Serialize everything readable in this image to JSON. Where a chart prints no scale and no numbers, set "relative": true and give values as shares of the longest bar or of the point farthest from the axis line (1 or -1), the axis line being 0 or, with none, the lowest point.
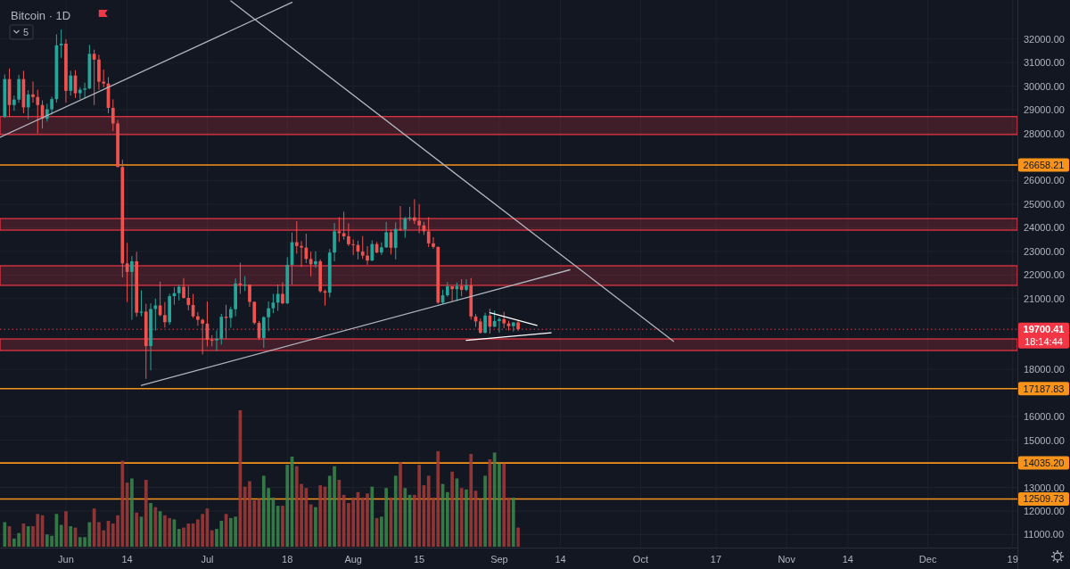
{
  "chart_data": [
    {
      "type": "candlestick",
      "title": "Bitcoin · 1D",
      "x": [
        "--05-19",
        "--05-20",
        "--05-21",
        "--05-22",
        "--05-23",
        "--05-24",
        "--05-25",
        "--05-26",
        "--05-27",
        "--05-28",
        "--05-29",
        "--05-30",
        "--05-31",
        "--06-01",
        "--06-02",
        "--06-03",
        "--06-04",
        "--06-05",
        "--06-06",
        "--06-07",
        "--06-08",
        "--06-09",
        "--06-10",
        "--06-11",
        "--06-12",
        "--06-13",
        "--06-14",
        "--06-15",
        "--06-16",
        "--06-17",
        "--06-18",
        "--06-19",
        "--06-20",
        "--06-21",
        "--06-22",
        "--06-23",
        "--06-24",
        "--06-25",
        "--06-26",
        "--06-27",
        "--06-28",
        "--06-29",
        "--06-30",
        "--07-01",
        "--07-02",
        "--07-03",
        "--07-04",
        "--07-05",
        "--07-06",
        "--07-07",
        "--07-08",
        "--07-09",
        "--07-10",
        "--07-11",
        "--07-12",
        "--07-13",
        "--07-14",
        "--07-15",
        "--07-16",
        "--07-17",
        "--07-18",
        "--07-19",
        "--07-20",
        "--07-21",
        "--07-22",
        "--07-23",
        "--07-24",
        "--07-25",
        "--07-26",
        "--07-27",
        "--07-28",
        "--07-29",
        "--07-30",
        "--07-31",
        "--08-01",
        "--08-02",
        "--08-03",
        "--08-04",
        "--08-05",
        "--08-06",
        "--08-07",
        "--08-08",
        "--08-09",
        "--08-10",
        "--08-11",
        "--08-12",
        "--08-13",
        "--08-14",
        "--08-15",
        "--08-16",
        "--08-17",
        "--08-18",
        "--08-19",
        "--08-20",
        "--08-21",
        "--08-22",
        "--08-23",
        "--08-24",
        "--08-25",
        "--08-26",
        "--08-27",
        "--08-28",
        "--08-29",
        "--08-30",
        "--08-31",
        "--09-01",
        "--09-02",
        "--09-03",
        "--09-04",
        "--09-05"
      ],
      "ohlc": [
        [
          28700,
          30500,
          28650,
          30300
        ],
        [
          30300,
          30750,
          28700,
          29200
        ],
        [
          29200,
          29600,
          28950,
          29430
        ],
        [
          29430,
          30480,
          29300,
          30300
        ],
        [
          30300,
          30650,
          28850,
          29100
        ],
        [
          29100,
          29830,
          28600,
          29650
        ],
        [
          29650,
          30200,
          29300,
          29540
        ],
        [
          29540,
          29850,
          28000,
          29200
        ],
        [
          29200,
          29400,
          28200,
          28620
        ],
        [
          28620,
          29250,
          28500,
          29020
        ],
        [
          29020,
          29550,
          28800,
          29450
        ],
        [
          29450,
          32200,
          29300,
          31730
        ],
        [
          31730,
          32400,
          31200,
          31800
        ],
        [
          31800,
          31980,
          29300,
          29800
        ],
        [
          29800,
          30650,
          29600,
          30450
        ],
        [
          30450,
          30680,
          29500,
          29700
        ],
        [
          29700,
          29950,
          29450,
          29850
        ],
        [
          29850,
          30150,
          29500,
          29900
        ],
        [
          29900,
          31750,
          29880,
          31370
        ],
        [
          31370,
          31550,
          29200,
          31125
        ],
        [
          31125,
          31330,
          29850,
          30190
        ],
        [
          30190,
          30700,
          29950,
          30110
        ],
        [
          30110,
          30380,
          28850,
          29080
        ],
        [
          29080,
          29440,
          28100,
          28420
        ],
        [
          28420,
          28560,
          26560,
          26575
        ],
        [
          26575,
          26880,
          21900,
          22490
        ],
        [
          22490,
          23360,
          20850,
          22130
        ],
        [
          22130,
          22800,
          20100,
          22580
        ],
        [
          22580,
          22980,
          20230,
          20400
        ],
        [
          20400,
          21350,
          20250,
          20450
        ],
        [
          20450,
          20780,
          17600,
          18990
        ],
        [
          18990,
          20800,
          17960,
          20560
        ],
        [
          20560,
          21000,
          19640,
          20710
        ],
        [
          20710,
          21720,
          20250,
          20300
        ],
        [
          20300,
          20850,
          19770,
          20000
        ],
        [
          20000,
          21200,
          19890,
          21100
        ],
        [
          21100,
          21480,
          20740,
          21230
        ],
        [
          21230,
          21580,
          20920,
          21500
        ],
        [
          21500,
          21870,
          21000,
          21030
        ],
        [
          21030,
          21530,
          20500,
          20730
        ],
        [
          20730,
          21200,
          20180,
          20250
        ],
        [
          20250,
          20430,
          19850,
          20100
        ],
        [
          20100,
          20150,
          18630,
          19940
        ],
        [
          19940,
          20880,
          18970,
          19250
        ],
        [
          19250,
          19450,
          18980,
          19230
        ],
        [
          19230,
          19650,
          18780,
          19300
        ],
        [
          19300,
          20350,
          19050,
          20230
        ],
        [
          20230,
          20740,
          19300,
          20180
        ],
        [
          20180,
          20660,
          19760,
          20550
        ],
        [
          20550,
          21850,
          20250,
          21640
        ],
        [
          21640,
          22520,
          21200,
          21580
        ],
        [
          21580,
          21950,
          21320,
          21590
        ],
        [
          21590,
          21600,
          20650,
          20860
        ],
        [
          20860,
          20880,
          19900,
          19970
        ],
        [
          19970,
          20050,
          19240,
          19330
        ],
        [
          19330,
          20250,
          18910,
          20210
        ],
        [
          20210,
          20880,
          19620,
          20590
        ],
        [
          20590,
          21200,
          20380,
          20830
        ],
        [
          20830,
          21600,
          20480,
          21200
        ],
        [
          21200,
          21690,
          20760,
          20800
        ],
        [
          20800,
          22750,
          20770,
          22430
        ],
        [
          22430,
          23800,
          21600,
          23390
        ],
        [
          23390,
          24280,
          22900,
          23230
        ],
        [
          23230,
          23440,
          22340,
          23160
        ],
        [
          23160,
          23750,
          22500,
          22680
        ],
        [
          22680,
          22990,
          21950,
          22450
        ],
        [
          22450,
          23000,
          22300,
          22580
        ],
        [
          22580,
          22660,
          21250,
          21310
        ],
        [
          21310,
          21380,
          20700,
          21250
        ],
        [
          21250,
          23100,
          21050,
          22950
        ],
        [
          22950,
          24200,
          22580,
          23850
        ],
        [
          23850,
          24450,
          23400,
          23770
        ],
        [
          23770,
          24680,
          23500,
          23640
        ],
        [
          23640,
          24190,
          23230,
          23300
        ],
        [
          23300,
          23510,
          22850,
          23270
        ],
        [
          23270,
          23450,
          22660,
          22990
        ],
        [
          22990,
          23650,
          22680,
          22820
        ],
        [
          22820,
          23220,
          22430,
          22610
        ],
        [
          22610,
          23470,
          22590,
          23310
        ],
        [
          23310,
          23400,
          22920,
          22950
        ],
        [
          22950,
          23380,
          22850,
          23170
        ],
        [
          23170,
          24250,
          23150,
          23810
        ],
        [
          23810,
          23930,
          22870,
          23150
        ],
        [
          23150,
          24230,
          22660,
          23950
        ],
        [
          23950,
          24920,
          23870,
          23930
        ],
        [
          23930,
          24460,
          23580,
          24400
        ],
        [
          24400,
          24890,
          24290,
          24440
        ],
        [
          24440,
          25210,
          24160,
          24300
        ],
        [
          24300,
          25000,
          23770,
          24100
        ],
        [
          24100,
          24250,
          23700,
          23850
        ],
        [
          23850,
          24450,
          23180,
          23340
        ],
        [
          23340,
          23600,
          23110,
          23190
        ],
        [
          23190,
          23200,
          20780,
          20830
        ],
        [
          20830,
          21380,
          20760,
          21140
        ],
        [
          21140,
          21700,
          21080,
          21520
        ],
        [
          21520,
          21530,
          20890,
          21400
        ],
        [
          21400,
          21680,
          20890,
          21530
        ],
        [
          21530,
          21820,
          21100,
          21370
        ],
        [
          21370,
          21820,
          21310,
          21560
        ],
        [
          21560,
          21870,
          20110,
          20240
        ],
        [
          20240,
          20340,
          19800,
          20030
        ],
        [
          20030,
          20150,
          19520,
          19550
        ],
        [
          19550,
          20400,
          19530,
          20280
        ],
        [
          20280,
          20570,
          19520,
          19810
        ],
        [
          19810,
          20490,
          19790,
          20050
        ],
        [
          20050,
          20200,
          19560,
          20130
        ],
        [
          20130,
          20440,
          19750,
          19950
        ],
        [
          19950,
          20060,
          19650,
          19830
        ],
        [
          19830,
          20000,
          19600,
          19990
        ],
        [
          19990,
          20060,
          19630,
          19700.41
        ]
      ],
      "series": [
        {
          "type": "line",
          "color": "#b2b5be",
          "x": [
            "--05-18",
            "--07-19"
          ],
          "values": [
            27830,
            33550
          ]
        },
        {
          "type": "line",
          "color": "#b2b5be",
          "x": [
            "--07-06",
            "--10-08"
          ],
          "values": [
            33610,
            19190
          ]
        },
        {
          "type": "line",
          "color": "#b2b5be",
          "x": [
            "--06-17",
            "--09-16"
          ],
          "values": [
            17320,
            22220
          ]
        },
        {
          "type": "line",
          "color": "#ffffff",
          "x": [
            "--08-30",
            "--09-09"
          ],
          "values": [
            20400,
            19860
          ]
        },
        {
          "type": "line",
          "color": "#ffffff",
          "x": [
            "--08-25",
            "--09-12"
          ],
          "values": [
            19230,
            19550
          ]
        }
      ],
      "xlim": [
        "--05-18",
        "--12-20"
      ],
      "xticks": [
        {
          "value": "--06-01",
          "label": "Jun"
        },
        {
          "value": "--06-14",
          "label": "14"
        },
        {
          "value": "--07-01",
          "label": "Jul"
        },
        {
          "value": "--07-18",
          "label": "18"
        },
        {
          "value": "--08-01",
          "label": "Aug"
        },
        {
          "value": "--08-15",
          "label": "15"
        },
        {
          "value": "--09-01",
          "label": "Sep"
        },
        {
          "value": "--09-14",
          "label": "14"
        },
        {
          "value": "--10-01",
          "label": "Oct"
        },
        {
          "value": "--10-17",
          "label": "17"
        },
        {
          "value": "--11-01",
          "label": "Nov"
        },
        {
          "value": "--11-14",
          "label": "14"
        },
        {
          "value": "--12-01",
          "label": "Dec"
        },
        {
          "value": "--12-19",
          "label": "19"
        }
      ],
      "ylim": [
        10450,
        33650
      ],
      "yticks": [
        {
          "value": 11000,
          "label": "11000.00"
        },
        {
          "value": 12000,
          "label": "12000.00"
        },
        {
          "value": 13000,
          "label": "13000.00"
        },
        {
          "value": 15000,
          "label": "15000.00"
        },
        {
          "value": 16000,
          "label": "16000.00"
        },
        {
          "value": 18000,
          "label": "18000.00"
        },
        {
          "value": 21000,
          "label": "21000.00"
        },
        {
          "value": 22000,
          "label": "22000.00"
        },
        {
          "value": 23000,
          "label": "23000.00"
        },
        {
          "value": 24000,
          "label": "24000.00"
        },
        {
          "value": 25000,
          "label": "25000.00"
        },
        {
          "value": 26000,
          "label": "26000.00"
        },
        {
          "value": 28000,
          "label": "28000.00"
        },
        {
          "value": 29000,
          "label": "29000.00"
        },
        {
          "value": 30000,
          "label": "30000.00"
        },
        {
          "value": 31000,
          "label": "31000.00"
        },
        {
          "value": 32000,
          "label": "32000.00"
        }
      ],
      "grid": true,
      "bands": [
        {
          "axis": "y",
          "from": 27950,
          "to": 28710,
          "color": "#f23645"
        },
        {
          "axis": "y",
          "from": 23900,
          "to": 24390,
          "color": "#f23645"
        },
        {
          "axis": "y",
          "from": 21560,
          "to": 22390,
          "color": "#f23645"
        },
        {
          "axis": "y",
          "from": 18800,
          "to": 19290,
          "color": "#f23645"
        }
      ],
      "ref_lines": [
        {
          "axis": "y",
          "value": 26658.21,
          "label": "26658.21",
          "color": "#f7931a"
        },
        {
          "axis": "y",
          "value": 17187.83,
          "label": "17187.83",
          "color": "#f7931a"
        },
        {
          "axis": "y",
          "value": 14035.2,
          "label": "14035.20",
          "color": "#f7931a"
        },
        {
          "axis": "y",
          "value": 12509.73,
          "label": "12509.73",
          "color": "#f7931a"
        },
        {
          "axis": "y",
          "value": 19700.41,
          "label": "19700.41",
          "color": "#f23645",
          "line_style": "dotted"
        }
      ],
      "annotations": [
        "5",
        "18:14:44"
      ]
    },
    {
      "type": "bar",
      "relative": true,
      "categories": [
        null,
        null,
        null,
        null,
        null,
        null,
        null,
        null,
        null,
        null,
        null,
        null,
        null,
        null,
        null,
        null,
        null,
        null,
        null,
        null,
        null,
        null,
        null,
        null,
        null,
        null,
        null,
        null,
        null,
        null,
        null,
        null,
        null,
        null,
        null,
        null,
        null,
        null,
        null,
        null,
        null,
        null,
        null,
        null,
        null,
        null,
        null,
        null,
        null,
        null,
        null,
        null,
        null,
        null,
        null,
        null,
        null,
        null,
        null,
        null,
        null,
        null,
        null,
        null,
        null,
        null,
        null,
        null,
        null,
        null,
        null,
        null,
        null,
        null,
        null,
        null,
        null,
        null,
        null,
        null,
        null,
        null,
        null,
        null,
        null,
        null,
        null,
        null,
        null,
        null,
        null,
        null,
        null,
        null,
        null,
        null,
        null,
        null,
        null,
        null,
        null,
        null,
        null,
        null,
        null,
        null,
        null,
        null,
        null,
        null
      ],
      "values": [
        0.18,
        0.15,
        0.06,
        0.1,
        0.17,
        0.15,
        0.15,
        0.24,
        0.23,
        0.09,
        0.08,
        0.24,
        0.16,
        0.26,
        0.15,
        0.14,
        0.07,
        0.07,
        0.18,
        0.28,
        0.18,
        0.12,
        0.19,
        0.17,
        0.23,
        0.63,
        0.47,
        0.5,
        0.25,
        0.22,
        0.49,
        0.32,
        0.29,
        0.26,
        0.23,
        0.21,
        0.2,
        0.13,
        0.14,
        0.17,
        0.17,
        0.2,
        0.24,
        0.28,
        0.12,
        0.13,
        0.19,
        0.24,
        0.21,
        0.22,
        1,
        0.44,
        0.48,
        0.34,
        0.35,
        0.52,
        0.43,
        0.36,
        0.3,
        0.3,
        0.6,
        0.66,
        0.59,
        0.46,
        0.43,
        0.31,
        0.29,
        0.45,
        0.44,
        0.52,
        0.59,
        0.49,
        0.38,
        0.32,
        0.36,
        0.4,
        0.36,
        0.39,
        0.44,
        0.21,
        0.22,
        0.43,
        0.36,
        0.52,
        0.62,
        0.43,
        0.38,
        0.38,
        0.6,
        0.45,
        0.52,
        0.36,
        0.7,
        0.46,
        0.4,
        0.55,
        0.5,
        0.43,
        0.42,
        0.68,
        0.41,
        0.35,
        0.52,
        0.64,
        0.69,
        0.61,
        0.61,
        0.36,
        0.36,
        0.14
      ],
      "colors": [
        "#3b8a4b",
        "#a53b38",
        "#3b8a4b",
        "#3b8a4b",
        "#a53b38",
        "#3b8a4b",
        "#a53b38",
        "#a53b38",
        "#a53b38",
        "#3b8a4b",
        "#3b8a4b",
        "#3b8a4b",
        "#3b8a4b",
        "#a53b38",
        "#3b8a4b",
        "#a53b38",
        "#3b8a4b",
        "#3b8a4b",
        "#3b8a4b",
        "#a53b38",
        "#a53b38",
        "#a53b38",
        "#a53b38",
        "#a53b38",
        "#a53b38",
        "#a53b38",
        "#a53b38",
        "#3b8a4b",
        "#a53b38",
        "#3b8a4b",
        "#a53b38",
        "#3b8a4b",
        "#a53b38",
        "#3b8a4b",
        "#a53b38",
        "#a53b38",
        "#3b8a4b",
        "#3b8a4b",
        "#a53b38",
        "#a53b38",
        "#a53b38",
        "#a53b38",
        "#a53b38",
        "#a53b38",
        "#a53b38",
        "#3b8a4b",
        "#3b8a4b",
        "#a53b38",
        "#3b8a4b",
        "#3b8a4b",
        "#a53b38",
        "#a53b38",
        "#a53b38",
        "#a53b38",
        "#a53b38",
        "#3b8a4b",
        "#3b8a4b",
        "#3b8a4b",
        "#3b8a4b",
        "#a53b38",
        "#3b8a4b",
        "#3b8a4b",
        "#a53b38",
        "#a53b38",
        "#a53b38",
        "#a53b38",
        "#3b8a4b",
        "#a53b38",
        "#a53b38",
        "#3b8a4b",
        "#3b8a4b",
        "#a53b38",
        "#a53b38",
        "#a53b38",
        "#a53b38",
        "#a53b38",
        "#a53b38",
        "#a53b38",
        "#3b8a4b",
        "#a53b38",
        "#3b8a4b",
        "#3b8a4b",
        "#a53b38",
        "#3b8a4b",
        "#a53b38",
        "#3b8a4b",
        "#3b8a4b",
        "#a53b38",
        "#a53b38",
        "#a53b38",
        "#a53b38",
        "#a53b38",
        "#a53b38",
        "#3b8a4b",
        "#3b8a4b",
        "#a53b38",
        "#3b8a4b",
        "#a53b38",
        "#3b8a4b",
        "#a53b38",
        "#a53b38",
        "#a53b38",
        "#3b8a4b",
        "#a53b38",
        "#3b8a4b",
        "#3b8a4b",
        "#a53b38",
        "#a53b38",
        "#3b8a4b",
        "#a53b38"
      ]
    }
  ]
}
